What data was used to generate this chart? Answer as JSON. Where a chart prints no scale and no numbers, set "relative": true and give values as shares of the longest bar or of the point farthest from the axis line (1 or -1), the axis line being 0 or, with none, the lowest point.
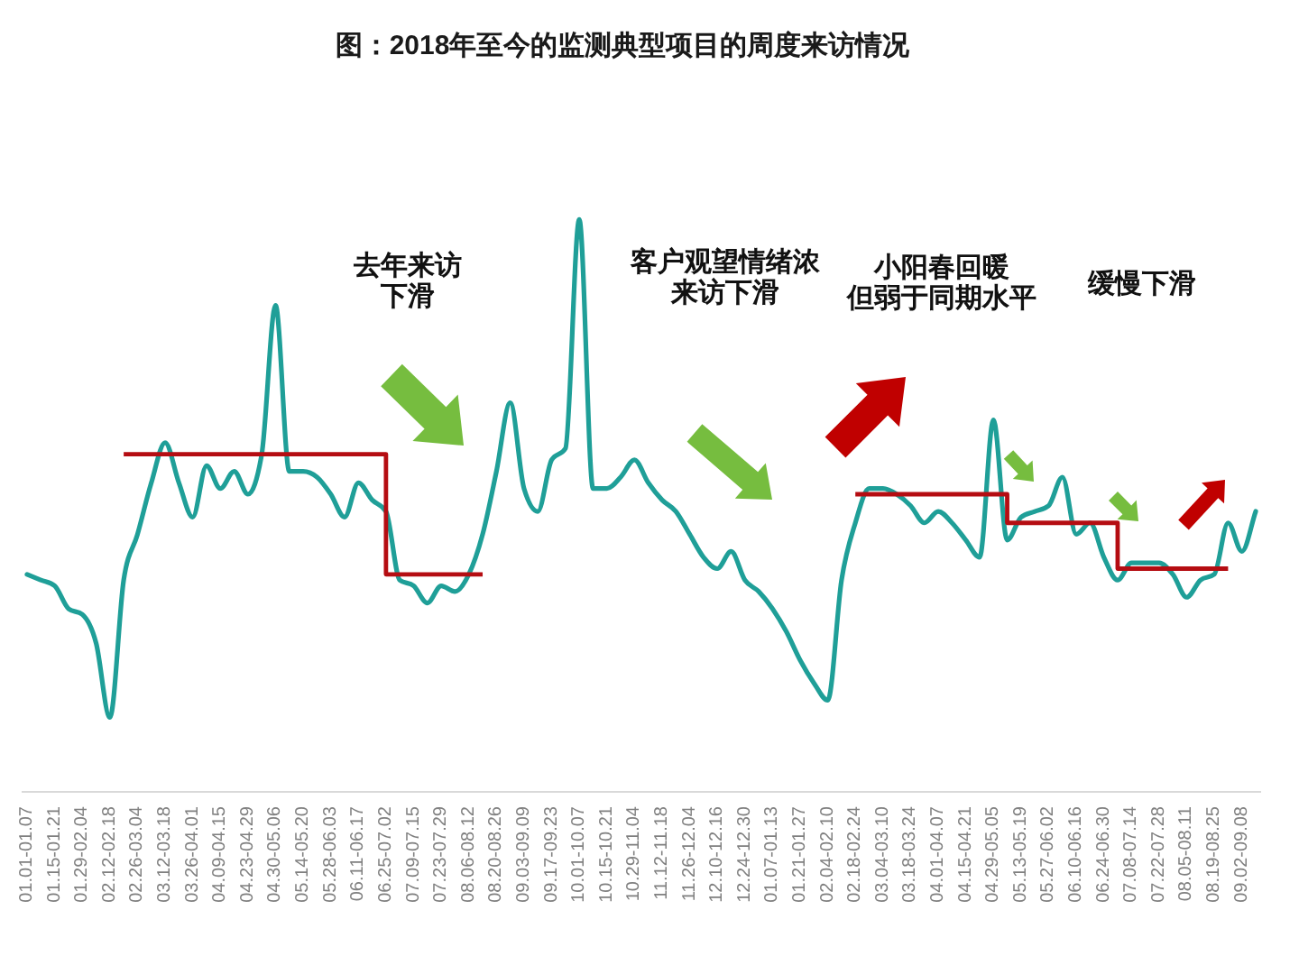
{
  "chart_data": {
    "type": "line",
    "title": "图：2018年至今的监测典型项目的周度来访情况",
    "categories": [
      "01.01-01.07",
      null,
      "01.15-01.21",
      null,
      "01.29-02.04",
      null,
      "02.12-02.18",
      null,
      "02.26-03.04",
      null,
      "03.12-03.18",
      null,
      "03.26-04.01",
      null,
      "04.09-04.15",
      null,
      "04.23-04.29",
      null,
      "04.30-05.06",
      null,
      "05.14-05.20",
      null,
      "05.28-06.03",
      null,
      "06.11-06.17",
      null,
      "06.25-07.02",
      null,
      "07.09-07.15",
      null,
      "07.23-07.29",
      null,
      "08.06-08.12",
      null,
      "08.20-08.26",
      null,
      "09.03-09.09",
      null,
      "09.17-09.23",
      null,
      "10.01-10.07",
      null,
      "10.15-10.21",
      null,
      "10.29-11.04",
      null,
      "11.12-11.18",
      null,
      "11.26-12.04",
      null,
      "12.10-12.16",
      null,
      "12.24-12.30",
      null,
      "01.07-01.13",
      null,
      "01.21-01.27",
      null,
      "02.04-02.10",
      null,
      "02.18-02.24",
      null,
      "03.04-03.10",
      null,
      "03.18-03.24",
      null,
      "04.01-04.07",
      null,
      "04.15-04.21",
      null,
      "04.29-05.05",
      null,
      "05.13-05.19",
      null,
      "05.27-06.02",
      null,
      "06.10-06.16",
      null,
      "06.24-06.30",
      null,
      "07.08-07.14",
      null,
      "07.22-07.28",
      null,
      "08.05-08.11",
      null,
      "08.19-08.25",
      null,
      "09.02-09.08",
      null
    ],
    "relative": true,
    "series": [
      {
        "color": "#1f9f98",
        "values": [
          0.38,
          0.37,
          0.36,
          0.32,
          0.31,
          0.26,
          0.13,
          0.37,
          0.45,
          0.54,
          0.61,
          0.54,
          0.48,
          0.57,
          0.53,
          0.56,
          0.52,
          0.59,
          0.85,
          0.56,
          0.56,
          0.55,
          0.52,
          0.48,
          0.54,
          0.51,
          0.49,
          0.37,
          0.36,
          0.33,
          0.36,
          0.35,
          0.38,
          0.45,
          0.56,
          0.68,
          0.53,
          0.49,
          0.58,
          0.6,
          1.0,
          0.53,
          0.53,
          0.55,
          0.58,
          0.54,
          0.51,
          0.49,
          0.45,
          0.41,
          0.39,
          0.42,
          0.37,
          0.35,
          0.32,
          0.28,
          0.23,
          0.19,
          0.16,
          0.37,
          0.47,
          0.53,
          0.53,
          0.52,
          0.5,
          0.47,
          0.49,
          0.47,
          0.44,
          0.41,
          0.65,
          0.44,
          0.48,
          0.49,
          0.5,
          0.55,
          0.45,
          0.47,
          0.41,
          0.37,
          0.4,
          0.4,
          0.4,
          0.38,
          0.34,
          0.37,
          0.38,
          0.47,
          0.42,
          0.49
        ]
      },
      {
        "type": "step",
        "color": "#b50d12",
        "values": [
          null,
          null,
          null,
          null,
          null,
          null,
          null,
          0.59,
          0.59,
          0.59,
          0.59,
          0.59,
          0.59,
          0.59,
          0.59,
          0.59,
          0.59,
          0.59,
          0.59,
          0.59,
          0.59,
          0.59,
          0.59,
          0.59,
          0.59,
          0.59,
          0.38,
          0.38,
          0.38,
          0.38,
          0.38,
          0.38,
          0.38,
          0.38,
          null,
          null,
          null,
          null,
          null,
          null,
          null,
          null,
          null,
          null,
          null,
          null,
          null,
          null,
          null,
          null,
          null,
          null,
          null,
          null,
          null,
          null,
          null,
          null,
          null,
          null,
          0.52,
          0.52,
          0.52,
          0.52,
          0.52,
          0.52,
          0.52,
          0.52,
          0.52,
          0.52,
          0.52,
          0.47,
          0.47,
          0.47,
          0.47,
          0.47,
          0.47,
          0.47,
          0.47,
          0.39,
          0.39,
          0.39,
          0.39,
          0.39,
          0.39,
          0.39,
          0.39,
          0.39,
          null,
          null
        ]
      }
    ],
    "annotations": [
      "去年来访",
      "下滑",
      "客户观望情绪浓",
      "来访下滑",
      "小阳春回暖",
      "但弱于同期水平",
      "缓慢下滑"
    ]
  }
}
